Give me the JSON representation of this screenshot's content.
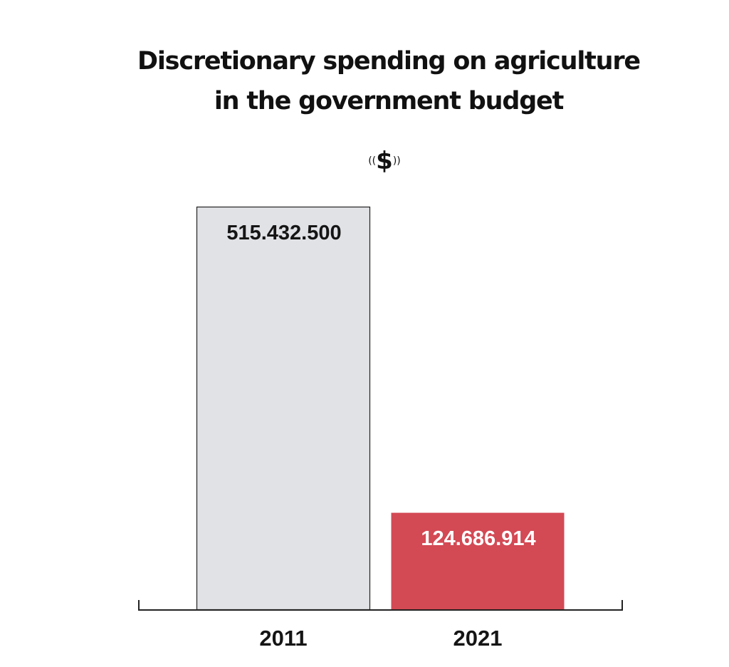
{
  "chart_data": {
    "type": "bar",
    "title_lines": [
      "Discretionary spending on agriculture",
      "in the government budget"
    ],
    "unit_label": "$",
    "unit_quote_open": "((",
    "unit_quote_close": "))",
    "categories": [
      "2011",
      "2021"
    ],
    "values": [
      515432500,
      124686914
    ],
    "value_labels": [
      "515.432.500",
      "124.686.914"
    ],
    "bar_colors": [
      "#e1e2e6",
      "#d34954"
    ],
    "bar_label_colors": [
      "#151515",
      "#ffffff"
    ],
    "bar_outlines": [
      "#222222",
      "none"
    ],
    "axis_color": "#222222",
    "ylim": [
      0,
      515432500
    ],
    "grid": false,
    "legend": false
  }
}
